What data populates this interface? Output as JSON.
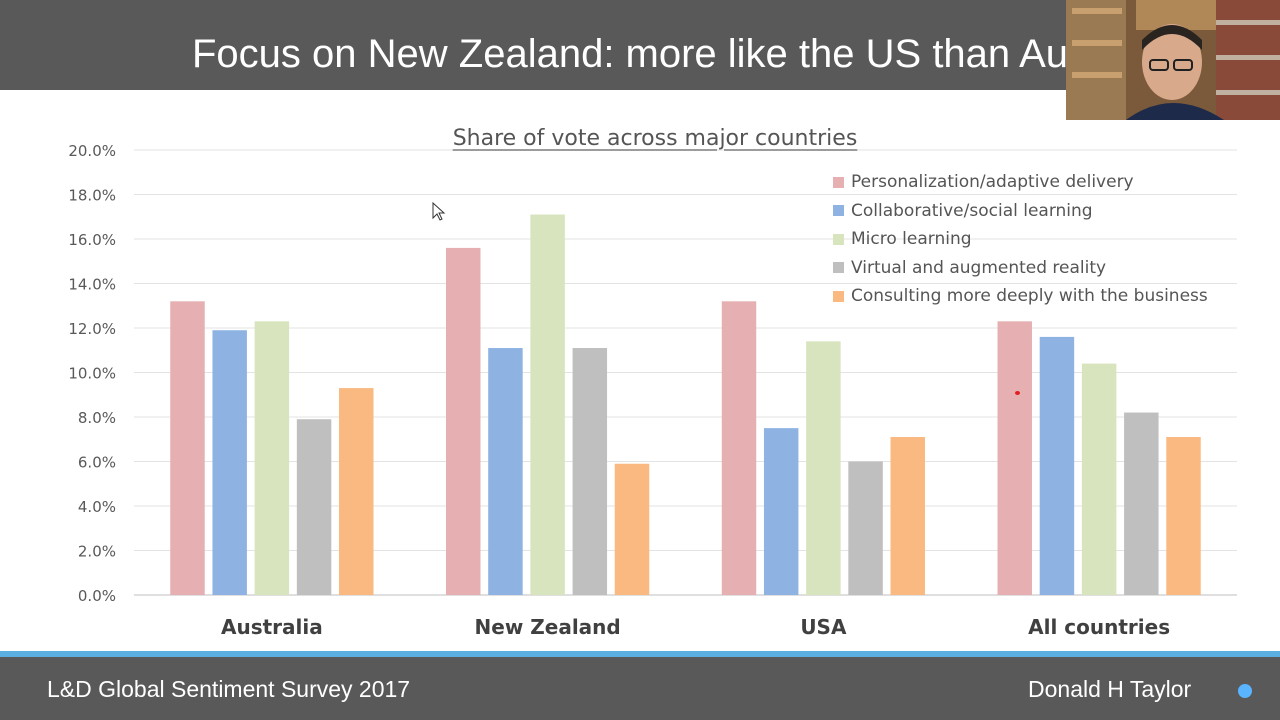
{
  "slide": {
    "title": "Focus on New Zealand: more like the US than Aus",
    "footer_left": "L&D Global Sentiment Survey 2017",
    "footer_right": "Donald H Taylor"
  },
  "colors": {
    "title_bar": "#595959",
    "accent_line": "#5aaee0",
    "footer_dot": "#5ab4ff"
  },
  "chart_data": {
    "type": "bar",
    "title": "Share of vote across major countries",
    "categories": [
      "Australia",
      "New Zealand",
      "USA",
      "All countries"
    ],
    "series": [
      {
        "name": "Personalization/adaptive delivery",
        "color": "#e6b0b2",
        "values": [
          13.2,
          15.6,
          13.2,
          12.3
        ]
      },
      {
        "name": "Collaborative/social learning",
        "color": "#8eb3e3",
        "values": [
          11.9,
          11.1,
          7.5,
          11.6
        ]
      },
      {
        "name": "Micro learning",
        "color": "#d7e4bd",
        "values": [
          12.3,
          17.1,
          11.4,
          10.4
        ]
      },
      {
        "name": "Virtual and augmented reality",
        "color": "#bfbfbf",
        "values": [
          7.9,
          11.1,
          6.0,
          8.2
        ]
      },
      {
        "name": "Consulting more deeply with the business",
        "color": "#fab981",
        "values": [
          9.3,
          5.9,
          7.1,
          7.1
        ]
      }
    ],
    "ylim": [
      0,
      20
    ],
    "yticks": [
      "0.0%",
      "2.0%",
      "4.0%",
      "6.0%",
      "8.0%",
      "10.0%",
      "12.0%",
      "14.0%",
      "16.0%",
      "18.0%",
      "20.0%"
    ],
    "gridlines": true,
    "legend": "top-right",
    "xlabel": "",
    "ylabel": ""
  }
}
